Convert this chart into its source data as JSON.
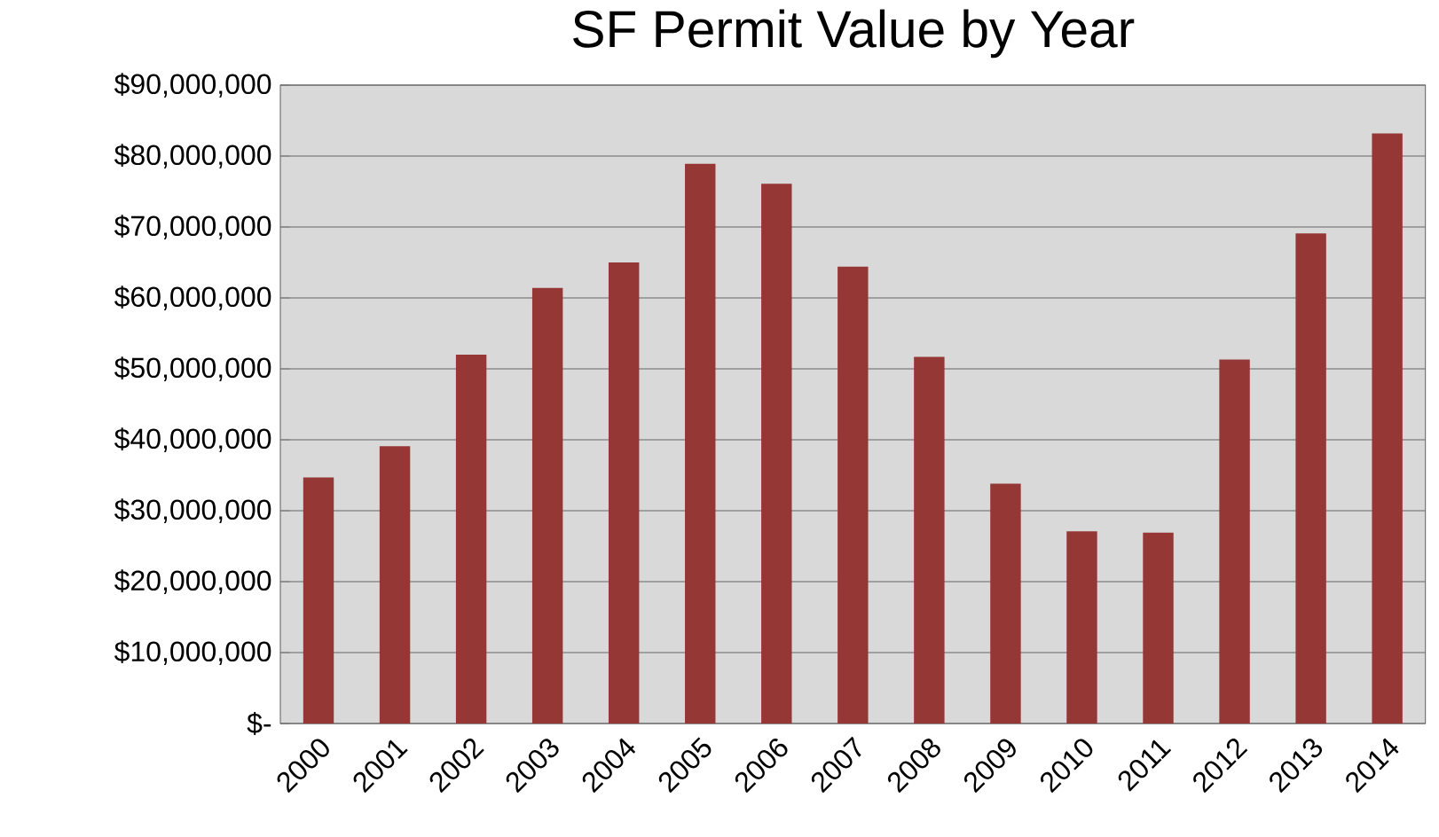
{
  "chart_data": {
    "type": "bar",
    "title": "SF Permit Value by Year",
    "categories": [
      "2000",
      "2001",
      "2002",
      "2003",
      "2004",
      "2005",
      "2006",
      "2007",
      "2008",
      "2009",
      "2010",
      "2011",
      "2012",
      "2013",
      "2014"
    ],
    "values": [
      34700000,
      39100000,
      52000000,
      61400000,
      65000000,
      78900000,
      76100000,
      64400000,
      51700000,
      33800000,
      27100000,
      26900000,
      51300000,
      69100000,
      83200000
    ],
    "color": "#953735",
    "ylim": [
      0,
      90000000
    ],
    "yticks": [
      {
        "value": 0,
        "label": "$-"
      },
      {
        "value": 10000000,
        "label": "$10,000,000"
      },
      {
        "value": 20000000,
        "label": "$20,000,000"
      },
      {
        "value": 30000000,
        "label": "$30,000,000"
      },
      {
        "value": 40000000,
        "label": "$40,000,000"
      },
      {
        "value": 50000000,
        "label": "$50,000,000"
      },
      {
        "value": 60000000,
        "label": "$60,000,000"
      },
      {
        "value": 70000000,
        "label": "$70,000,000"
      },
      {
        "value": 80000000,
        "label": "$80,000,000"
      },
      {
        "value": 90000000,
        "label": "$90,000,000"
      }
    ],
    "grid": "y"
  }
}
